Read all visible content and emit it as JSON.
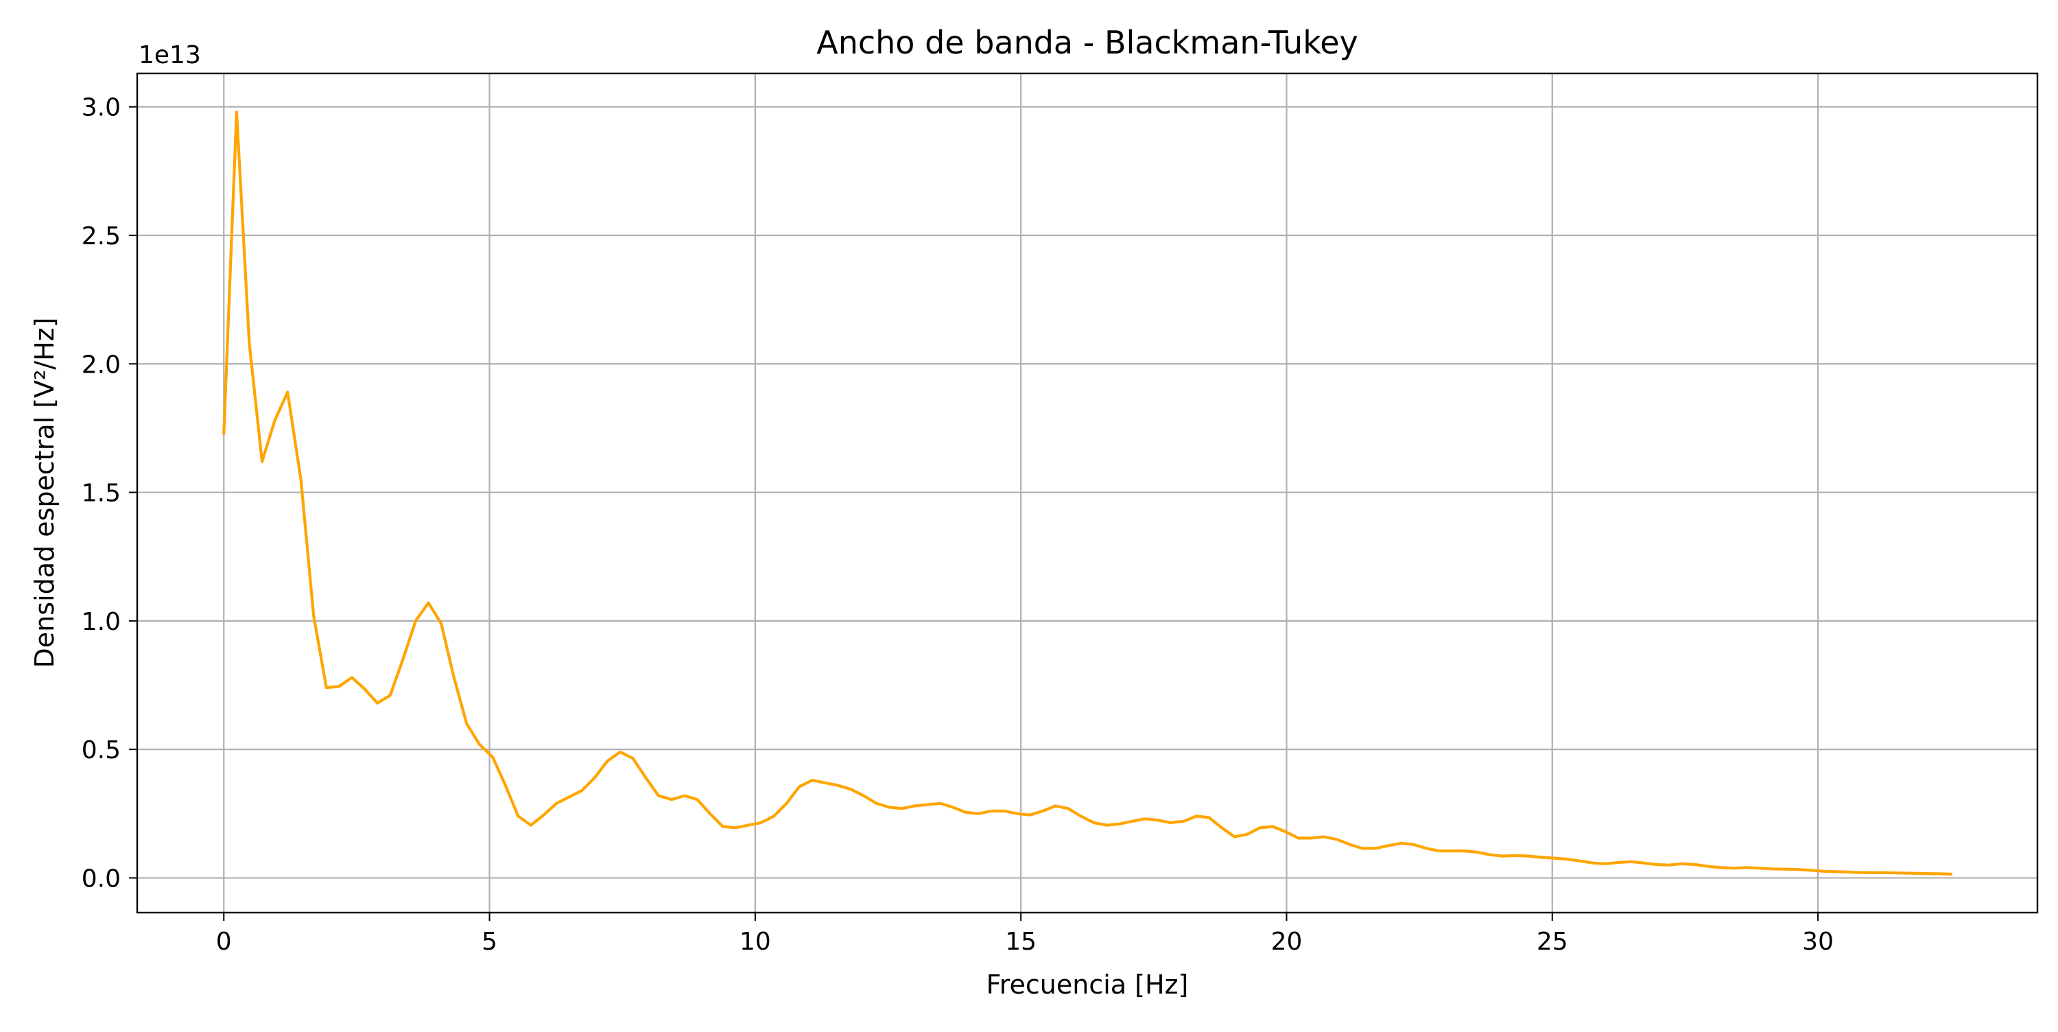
{
  "chart_data": {
    "type": "line",
    "title": "Ancho de banda - Blackman-Tukey",
    "xlabel": "Frecuencia [Hz]",
    "ylabel": "Densidad espectral [V²/Hz]",
    "y_offset_label": "1e13",
    "xlim": [
      -1.63,
      34.13
    ],
    "ylim": [
      -0.135,
      3.13
    ],
    "x_ticks": [
      0,
      5,
      10,
      15,
      20,
      25,
      30
    ],
    "x_tick_labels": [
      "0",
      "5",
      "10",
      "15",
      "20",
      "25",
      "30"
    ],
    "y_ticks": [
      0.0,
      0.5,
      1.0,
      1.5,
      2.0,
      2.5,
      3.0
    ],
    "y_tick_labels": [
      "0.0",
      "0.5",
      "1.0",
      "1.5",
      "2.0",
      "2.5",
      "3.0"
    ],
    "grid": true,
    "legend": "none",
    "series": [
      {
        "color": "#ffa500",
        "x": [
          0.0,
          0.24,
          0.48,
          0.72,
          0.96,
          1.2,
          1.45,
          1.69,
          1.93,
          2.17,
          2.41,
          2.65,
          2.89,
          3.13,
          3.37,
          3.61,
          3.85,
          4.09,
          4.33,
          4.57,
          4.81,
          5.06,
          5.3,
          5.54,
          5.78,
          6.02,
          6.26,
          6.5,
          6.74,
          6.98,
          7.22,
          7.46,
          7.7,
          7.94,
          8.18,
          8.43,
          8.67,
          8.91,
          9.15,
          9.39,
          9.63,
          9.87,
          10.11,
          10.35,
          10.59,
          10.83,
          11.07,
          11.31,
          11.56,
          11.8,
          12.04,
          12.28,
          12.52,
          12.76,
          13.0,
          13.24,
          13.48,
          13.72,
          13.96,
          14.2,
          14.44,
          14.69,
          14.93,
          15.17,
          15.41,
          15.65,
          15.89,
          16.13,
          16.37,
          16.61,
          16.85,
          17.09,
          17.33,
          17.57,
          17.81,
          18.06,
          18.3,
          18.54,
          18.78,
          19.02,
          19.26,
          19.5,
          19.74,
          19.98,
          20.22,
          20.46,
          20.7,
          20.94,
          21.19,
          21.43,
          21.67,
          21.91,
          22.15,
          22.39,
          22.63,
          22.87,
          23.11,
          23.35,
          23.59,
          23.83,
          24.07,
          24.31,
          24.56,
          24.8,
          25.04,
          25.28,
          25.52,
          25.76,
          26.0,
          26.24,
          26.48,
          26.72,
          26.96,
          27.2,
          27.44,
          27.69,
          27.93,
          28.17,
          28.41,
          28.65,
          28.89,
          29.13,
          29.37,
          29.61,
          29.85,
          30.09,
          30.33,
          30.57,
          30.81,
          31.06,
          31.3,
          31.54,
          31.78,
          32.02,
          32.26,
          32.5
        ],
        "y": [
          1.73,
          2.98,
          2.08,
          1.62,
          1.78,
          1.89,
          1.55,
          1.02,
          0.74,
          0.745,
          0.78,
          0.735,
          0.68,
          0.71,
          0.85,
          1.0,
          1.07,
          0.99,
          0.78,
          0.6,
          0.52,
          0.47,
          0.36,
          0.24,
          0.205,
          0.245,
          0.29,
          0.315,
          0.34,
          0.39,
          0.455,
          0.49,
          0.465,
          0.39,
          0.32,
          0.305,
          0.32,
          0.305,
          0.25,
          0.2,
          0.195,
          0.205,
          0.215,
          0.24,
          0.29,
          0.355,
          0.38,
          0.37,
          0.36,
          0.345,
          0.32,
          0.29,
          0.275,
          0.27,
          0.28,
          0.285,
          0.29,
          0.275,
          0.255,
          0.25,
          0.26,
          0.26,
          0.25,
          0.245,
          0.26,
          0.28,
          0.27,
          0.24,
          0.215,
          0.205,
          0.21,
          0.22,
          0.23,
          0.225,
          0.215,
          0.22,
          0.24,
          0.235,
          0.195,
          0.16,
          0.17,
          0.195,
          0.2,
          0.18,
          0.155,
          0.155,
          0.16,
          0.15,
          0.13,
          0.115,
          0.115,
          0.125,
          0.135,
          0.13,
          0.115,
          0.105,
          0.105,
          0.105,
          0.1,
          0.09,
          0.085,
          0.087,
          0.085,
          0.08,
          0.077,
          0.073,
          0.066,
          0.058,
          0.055,
          0.06,
          0.063,
          0.058,
          0.052,
          0.05,
          0.055,
          0.052,
          0.045,
          0.04,
          0.038,
          0.04,
          0.038,
          0.035,
          0.034,
          0.033,
          0.03,
          0.026,
          0.024,
          0.023,
          0.021,
          0.02,
          0.02,
          0.019,
          0.018,
          0.017,
          0.016,
          0.015
        ]
      }
    ]
  }
}
